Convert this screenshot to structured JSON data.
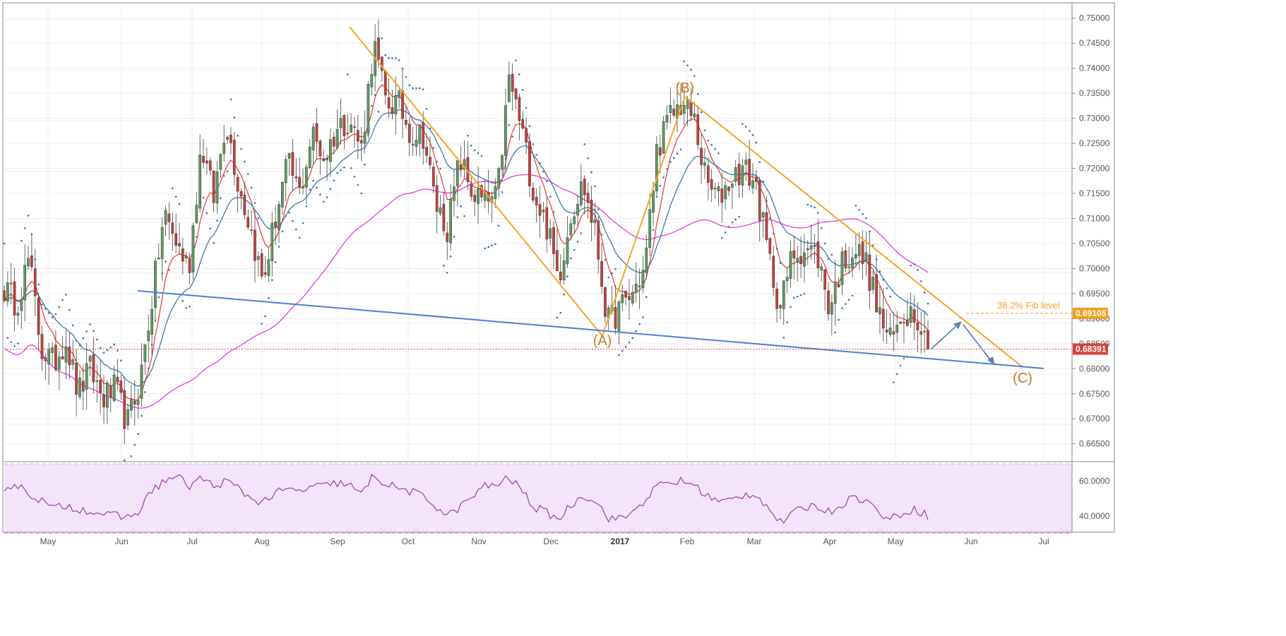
{
  "chart_data": {
    "type": "candlestick",
    "timeframe_axis": {
      "labels": [
        "May",
        "Jun",
        "Jul",
        "Aug",
        "Sep",
        "Oct",
        "Nov",
        "Dec",
        "2017",
        "Feb",
        "Mar",
        "Apr",
        "May",
        "Jun",
        "Jul"
      ],
      "bold_labels": [
        "2017"
      ]
    },
    "price_axis": {
      "ylim": [
        0.662,
        0.7525
      ],
      "ticks": [
        "0.75000",
        "0.74500",
        "0.74000",
        "0.73500",
        "0.73000",
        "0.72500",
        "0.72000",
        "0.71500",
        "0.71000",
        "0.70500",
        "0.70000",
        "0.69500",
        "0.69000",
        "0.68500",
        "0.68000",
        "0.67500",
        "0.67000",
        "0.66500"
      ]
    },
    "current_price": {
      "value": 0.68391,
      "label": "0.68391",
      "color": "#d9433b"
    },
    "fib_level": {
      "value": 0.69105,
      "label": "0.69105",
      "text": "38.2% Fib level",
      "color": "#f0a020"
    },
    "rsi_axis": {
      "ylim": [
        33,
        68
      ],
      "ticks": [
        "60.0000",
        "40.0000"
      ],
      "band": [
        30,
        70
      ]
    },
    "price_path": [
      0.696,
      0.693,
      0.702,
      0.684,
      0.681,
      0.686,
      0.675,
      0.68,
      0.674,
      0.676,
      0.669,
      0.677,
      0.694,
      0.711,
      0.705,
      0.7,
      0.725,
      0.714,
      0.73,
      0.717,
      0.708,
      0.697,
      0.71,
      0.721,
      0.715,
      0.727,
      0.722,
      0.728,
      0.73,
      0.724,
      0.745,
      0.733,
      0.733,
      0.727,
      0.727,
      0.713,
      0.708,
      0.722,
      0.715,
      0.713,
      0.714,
      0.738,
      0.728,
      0.715,
      0.709,
      0.698,
      0.711,
      0.717,
      0.707,
      0.689,
      0.692,
      0.695,
      0.7,
      0.724,
      0.73,
      0.733,
      0.73,
      0.717,
      0.714,
      0.718,
      0.72,
      0.717,
      0.703,
      0.692,
      0.703,
      0.704,
      0.703,
      0.692,
      0.701,
      0.704,
      0.701,
      0.691,
      0.685,
      0.691,
      0.692,
      0.684
    ],
    "rsi_path": [
      56,
      58,
      53,
      49,
      44,
      46,
      44,
      43,
      41,
      40,
      39,
      43,
      55,
      60,
      63,
      57,
      62,
      57,
      60,
      56,
      50,
      48,
      53,
      55,
      54,
      57,
      57,
      59,
      58,
      52,
      64,
      58,
      56,
      54,
      51,
      46,
      40,
      45,
      51,
      57,
      58,
      62,
      55,
      45,
      42,
      38,
      46,
      52,
      49,
      39,
      38,
      42,
      49,
      57,
      59,
      60,
      58,
      52,
      48,
      49,
      52,
      53,
      45,
      36,
      41,
      45,
      46,
      42,
      47,
      51,
      49,
      42,
      38,
      42,
      44,
      40
    ],
    "ema_fast_color": "#e53935",
    "ema_slow_color": "#2f6fa8",
    "sma_color": "#e040e0",
    "sar_color": "#3a6ea5",
    "rsi_color": "#9b3fa6",
    "rsi_bg": "#f3e4fa",
    "up_candle_color": "#5b9e62",
    "down_candle_color": "#c8413a",
    "trendline_color": "#f5a623",
    "support_color": "#4a7fd6",
    "wave_labels": [
      "(A)",
      "(B)",
      "(C)"
    ]
  }
}
